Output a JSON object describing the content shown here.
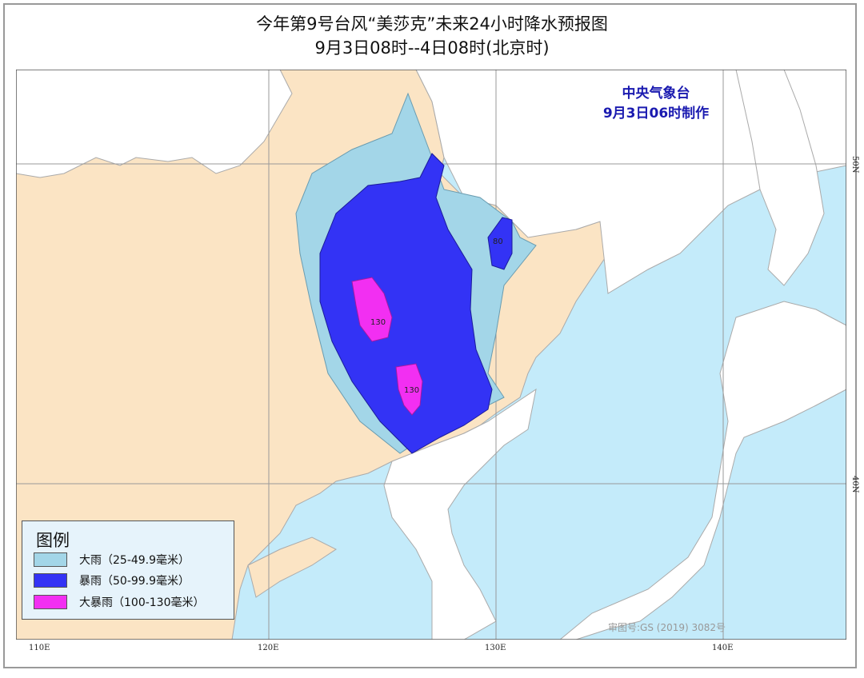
{
  "title": {
    "line1": "今年第9号台风“美莎克”未来24小时降水预报图",
    "line2": "9月3日08时--4日08时(北京时)"
  },
  "issuer": {
    "name": "中央气象台",
    "time": "9月3日06时制作"
  },
  "axes": {
    "lon_ticks": [
      "110E",
      "120E",
      "130E",
      "140E"
    ],
    "lat_ticks": [
      "50N",
      "40N"
    ]
  },
  "legend": {
    "title": "图例",
    "items": [
      {
        "label": "大雨（25-49.9毫米）",
        "color": "#a3d6e8"
      },
      {
        "label": "暴雨（50-99.9毫米）",
        "color": "#3333f5"
      },
      {
        "label": "大暴雨（100-130毫米）",
        "color": "#f22ff2"
      }
    ]
  },
  "max_labels": [
    "80",
    "130",
    "130"
  ],
  "approval": "审图号:GS (2019) 3082号",
  "colors": {
    "china_land": "#fbe4c4",
    "sea": "#c4ebfa",
    "other_land": "#ffffff",
    "border": "#999999"
  }
}
